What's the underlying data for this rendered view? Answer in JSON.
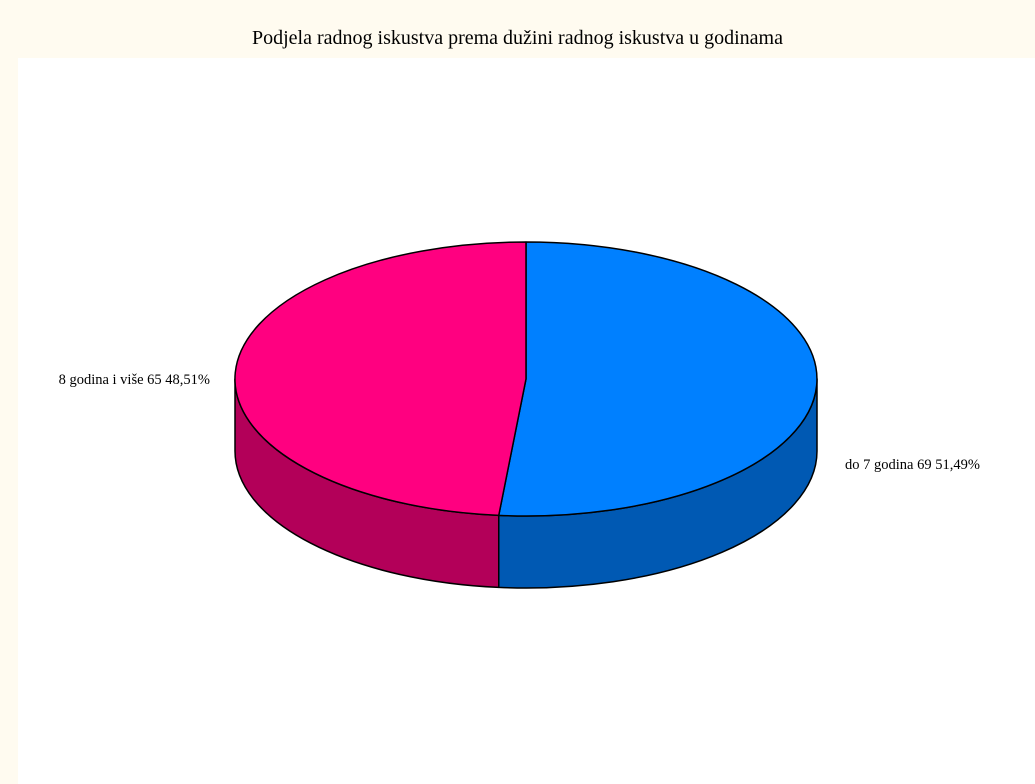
{
  "chart_data": {
    "type": "pie",
    "title": "Podjela radnog iskustva prema dužini radnog iskustva u godinama",
    "slices": [
      {
        "label": "do 7 godina",
        "value": 69,
        "percent": "51,49%",
        "color": "#0080ff",
        "side_color": "#0059b3"
      },
      {
        "label": "8 godina i više",
        "value": 65,
        "percent": "48,51%",
        "color": "#ff0080",
        "side_color": "#b30059"
      }
    ],
    "legend": "none",
    "style": "3d"
  }
}
